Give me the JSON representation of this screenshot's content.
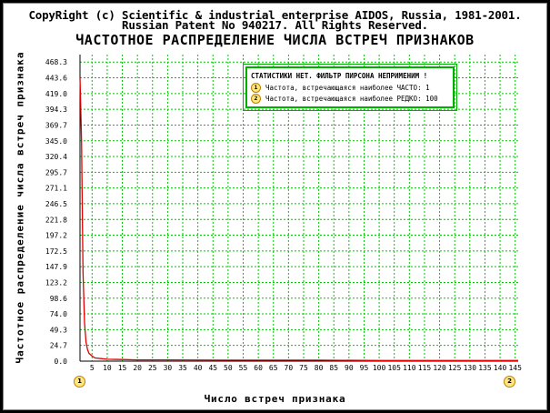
{
  "header": {
    "copyright_line1": "CopyRight (c) Scientific & industrial enterprise AIDOS, Russia, 1981-2001.",
    "copyright_line2": "Russian Patent No 940217. All Rights Reserved."
  },
  "legend": {
    "title": "СТАТИСТИКИ НЕТ. ФИЛЬТР ПИРСОНА НЕПРИМЕНИМ !",
    "items": [
      {
        "marker": "1",
        "text": "Частота, встречающаяся наиболее ЧАСТО: 1"
      },
      {
        "marker": "2",
        "text": "Частота, встречающаяся наиболее РЕДКО: 100"
      }
    ]
  },
  "axis_markers": {
    "first": "1",
    "last": "2"
  },
  "colors": {
    "background": "#ffffff",
    "grid": "#00c800",
    "curve": "#e00000",
    "axis": "#000000",
    "legend_border": "#00b000",
    "marker_fill": "#ffe680"
  },
  "chart_data": {
    "type": "line",
    "title": "ЧАСТОТНОЕ РАСПРЕДЕЛЕНИЕ ЧИСЛА ВСТРЕЧ ПРИЗНАКОВ",
    "xlabel": "Число встреч признака",
    "ylabel": "Частотное распределение числа встреч признака",
    "xlim": [
      1,
      146
    ],
    "ylim": [
      0,
      480
    ],
    "y_ticks": [
      "0.0",
      "24.7",
      "49.3",
      "74.0",
      "98.6",
      "123.2",
      "147.9",
      "172.5",
      "197.2",
      "221.8",
      "246.5",
      "271.1",
      "295.7",
      "320.4",
      "345.0",
      "369.7",
      "394.3",
      "419.0",
      "443.6",
      "468.3"
    ],
    "x_ticks": [
      "5",
      "10",
      "15",
      "20",
      "25",
      "30",
      "35",
      "40",
      "45",
      "50",
      "55",
      "60",
      "65",
      "70",
      "75",
      "80",
      "85",
      "90",
      "95",
      "100",
      "105",
      "110",
      "115",
      "120",
      "125",
      "130",
      "135",
      "140",
      "145"
    ],
    "grid": true,
    "legend_position": "top-right",
    "series": [
      {
        "x": [
          1,
          1.5,
          2,
          2.5,
          3,
          3.5,
          4,
          5,
          6,
          8,
          10,
          15,
          20,
          30,
          50,
          80,
          100,
          130,
          146
        ],
        "values": [
          443.6,
          345.0,
          140.0,
          60.0,
          30.0,
          18.0,
          12.0,
          8.0,
          5.0,
          4.0,
          3.0,
          2.5,
          2.0,
          2.0,
          1.5,
          1.5,
          1.0,
          1.0,
          1.0
        ]
      }
    ]
  }
}
